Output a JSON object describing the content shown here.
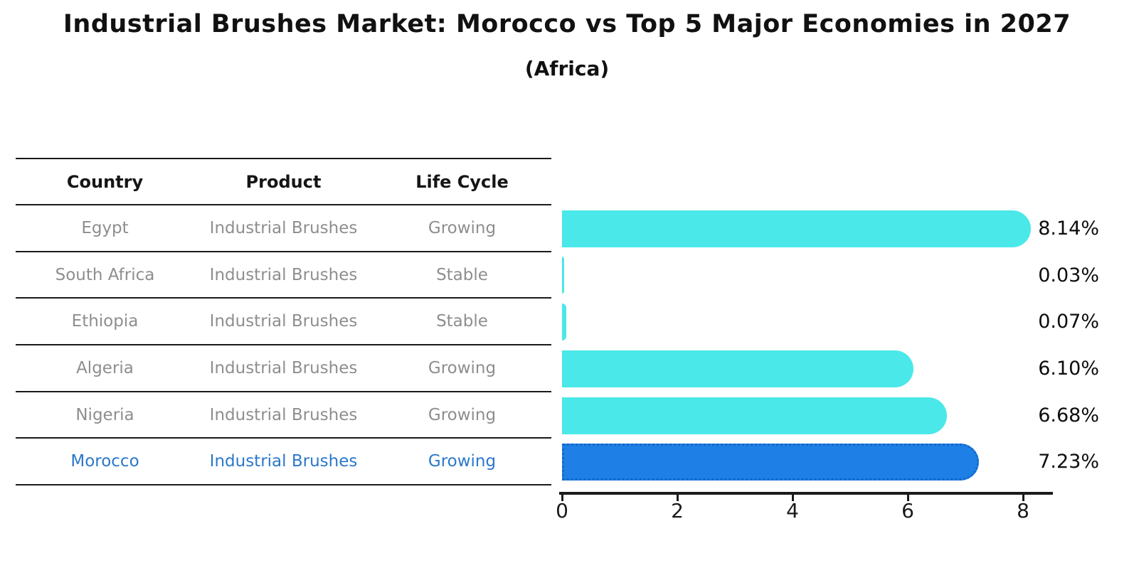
{
  "header": {
    "title": "Industrial Brushes Market: Morocco vs Top 5 Major Economies in 2027",
    "subtitle": "(Africa)"
  },
  "table": {
    "columns": [
      "Country",
      "Product",
      "Life Cycle"
    ],
    "rows": [
      {
        "country": "Egypt",
        "product": "Industrial Brushes",
        "life_cycle": "Growing",
        "highlight": false
      },
      {
        "country": "South Africa",
        "product": "Industrial Brushes",
        "life_cycle": "Stable",
        "highlight": false
      },
      {
        "country": "Ethiopia",
        "product": "Industrial Brushes",
        "life_cycle": "Stable",
        "highlight": false
      },
      {
        "country": "Algeria",
        "product": "Industrial Brushes",
        "life_cycle": "Growing",
        "highlight": false
      },
      {
        "country": "Nigeria",
        "product": "Industrial Brushes",
        "life_cycle": "Growing",
        "highlight": false
      },
      {
        "country": "Morocco",
        "product": "Industrial Brushes",
        "life_cycle": "Growing",
        "highlight": true
      }
    ]
  },
  "chart_data": {
    "type": "bar",
    "orientation": "horizontal",
    "title": "Industrial Brushes Market: Morocco vs Top 5 Major Economies in 2027 (Africa)",
    "categories": [
      "Egypt",
      "South Africa",
      "Ethiopia",
      "Algeria",
      "Nigeria",
      "Morocco"
    ],
    "values": [
      8.14,
      0.03,
      0.07,
      6.1,
      6.68,
      7.23
    ],
    "value_labels": [
      "8.14%",
      "0.03%",
      "0.07%",
      "6.10%",
      "6.68%",
      "7.23%"
    ],
    "highlight_category": "Morocco",
    "xlabel": "",
    "ylabel": "",
    "xlim": [
      0,
      8.6
    ],
    "x_ticks": [
      0,
      2,
      4,
      6,
      8
    ],
    "grid": false,
    "legend": "none",
    "colors": {
      "bar": "#4ae8e8",
      "highlight_bar": "#1e80e6",
      "highlight_border": "#1467c8",
      "muted_text": "#8e8e8e",
      "highlight_text": "#2b78cb",
      "axis": "#1a1a1a"
    }
  }
}
